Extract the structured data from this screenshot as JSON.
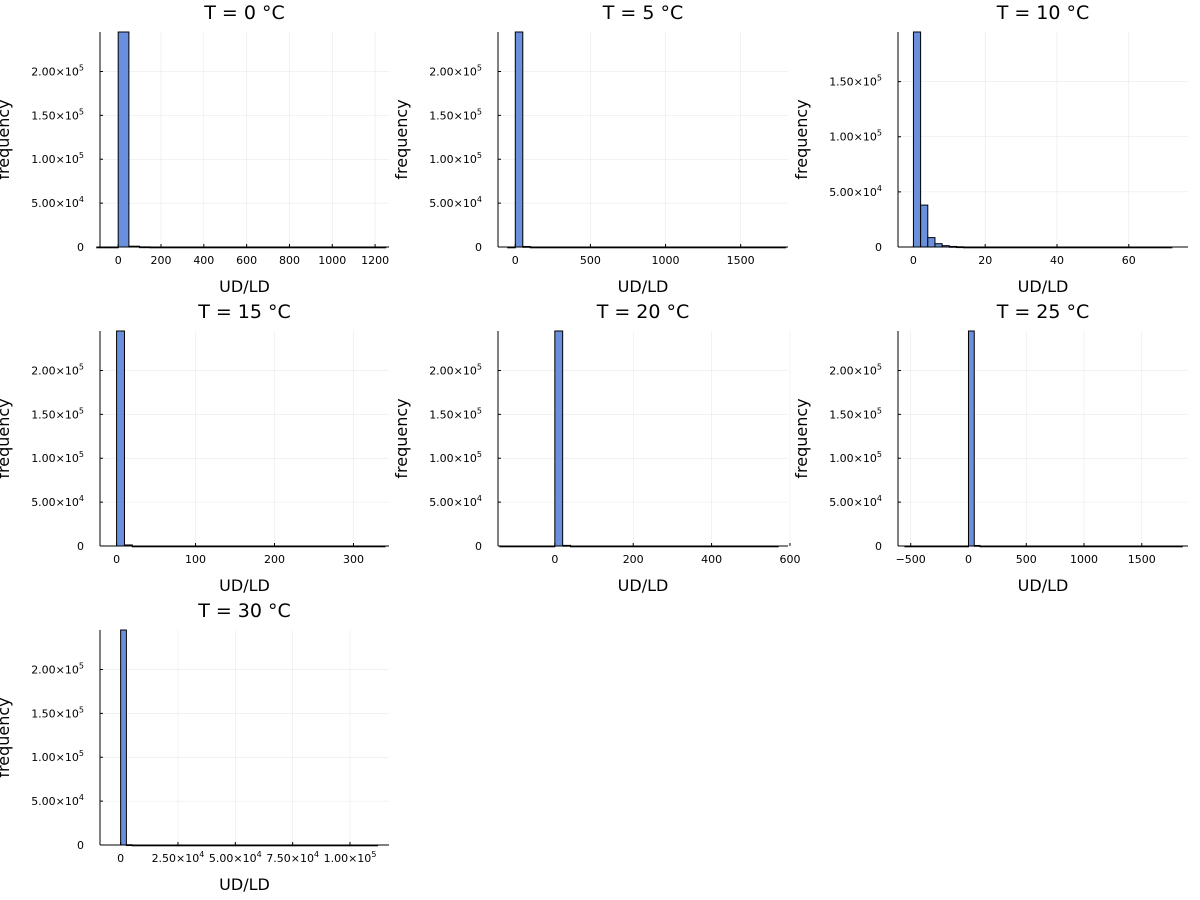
{
  "chart_data": [
    {
      "type": "bar",
      "title": "T = 0 °C",
      "xlabel": "UD/LD",
      "ylabel": "frequency",
      "grid": true,
      "legend": false,
      "bar_color": "#6a8fdc",
      "xlim": [
        -85,
        1265
      ],
      "ylim": [
        0,
        245000
      ],
      "xticks": [
        {
          "value": 0,
          "label": "0"
        },
        {
          "value": 200,
          "label": "200"
        },
        {
          "value": 400,
          "label": "400"
        },
        {
          "value": 600,
          "label": "600"
        },
        {
          "value": 800,
          "label": "800"
        },
        {
          "value": 1000,
          "label": "1000"
        },
        {
          "value": 1200,
          "label": "1200"
        }
      ],
      "yticks": [
        {
          "value": 0,
          "mant": "0",
          "exp": ""
        },
        {
          "value": 50000,
          "mant": "5.00×10",
          "exp": "4"
        },
        {
          "value": 100000,
          "mant": "1.00×10",
          "exp": "5"
        },
        {
          "value": 150000,
          "mant": "1.50×10",
          "exp": "5"
        },
        {
          "value": 200000,
          "mant": "2.00×10",
          "exp": "5"
        }
      ],
      "bins": [
        {
          "x0": -100,
          "x1": 0,
          "count": 0
        },
        {
          "x0": 0,
          "x1": 50,
          "count": 245000
        },
        {
          "x0": 50,
          "x1": 100,
          "count": 900
        },
        {
          "x0": 100,
          "x1": 150,
          "count": 150
        },
        {
          "x0": 150,
          "x1": 1250,
          "count": 0
        }
      ]
    },
    {
      "type": "bar",
      "title": "T = 5 °C",
      "xlabel": "UD/LD",
      "ylabel": "frequency",
      "grid": true,
      "legend": false,
      "bar_color": "#6a8fdc",
      "xlim": [
        -115,
        1815
      ],
      "ylim": [
        0,
        245000
      ],
      "xticks": [
        {
          "value": 0,
          "label": "0"
        },
        {
          "value": 500,
          "label": "500"
        },
        {
          "value": 1000,
          "label": "1000"
        },
        {
          "value": 1500,
          "label": "1500"
        }
      ],
      "yticks": [
        {
          "value": 0,
          "mant": "0",
          "exp": ""
        },
        {
          "value": 50000,
          "mant": "5.00×10",
          "exp": "4"
        },
        {
          "value": 100000,
          "mant": "1.00×10",
          "exp": "5"
        },
        {
          "value": 150000,
          "mant": "1.50×10",
          "exp": "5"
        },
        {
          "value": 200000,
          "mant": "2.00×10",
          "exp": "5"
        }
      ],
      "bins": [
        {
          "x0": -50,
          "x1": 0,
          "count": 0
        },
        {
          "x0": 0,
          "x1": 50,
          "count": 245000
        },
        {
          "x0": 50,
          "x1": 100,
          "count": 600
        },
        {
          "x0": 100,
          "x1": 1800,
          "count": 0
        }
      ]
    },
    {
      "type": "bar",
      "title": "T = 10 °C",
      "xlabel": "UD/LD",
      "ylabel": "frequency",
      "grid": true,
      "legend": false,
      "bar_color": "#6a8fdc",
      "xlim": [
        -4.3,
        76.5
      ],
      "ylim": [
        0,
        195000
      ],
      "xticks": [
        {
          "value": 0,
          "label": "0"
        },
        {
          "value": 20,
          "label": "20"
        },
        {
          "value": 40,
          "label": "40"
        },
        {
          "value": 60,
          "label": "60"
        }
      ],
      "yticks": [
        {
          "value": 0,
          "mant": "0",
          "exp": ""
        },
        {
          "value": 50000,
          "mant": "5.00×10",
          "exp": "4"
        },
        {
          "value": 100000,
          "mant": "1.00×10",
          "exp": "5"
        },
        {
          "value": 150000,
          "mant": "1.50×10",
          "exp": "5"
        }
      ],
      "bins": [
        {
          "x0": 0,
          "x1": 2,
          "count": 195000
        },
        {
          "x0": 2,
          "x1": 4,
          "count": 38000
        },
        {
          "x0": 4,
          "x1": 6,
          "count": 8500
        },
        {
          "x0": 6,
          "x1": 8,
          "count": 3000
        },
        {
          "x0": 8,
          "x1": 10,
          "count": 1200
        },
        {
          "x0": 10,
          "x1": 12,
          "count": 500
        },
        {
          "x0": 12,
          "x1": 14,
          "count": 200
        },
        {
          "x0": 14,
          "x1": 72,
          "count": 0
        }
      ]
    },
    {
      "type": "bar",
      "title": "T = 15 °C",
      "xlabel": "UD/LD",
      "ylabel": "frequency",
      "grid": true,
      "legend": false,
      "bar_color": "#6a8fdc",
      "xlim": [
        -21,
        345
      ],
      "ylim": [
        0,
        245000
      ],
      "xticks": [
        {
          "value": 0,
          "label": "0"
        },
        {
          "value": 100,
          "label": "100"
        },
        {
          "value": 200,
          "label": "200"
        },
        {
          "value": 300,
          "label": "300"
        }
      ],
      "yticks": [
        {
          "value": 0,
          "mant": "0",
          "exp": ""
        },
        {
          "value": 50000,
          "mant": "5.00×10",
          "exp": "4"
        },
        {
          "value": 100000,
          "mant": "1.00×10",
          "exp": "5"
        },
        {
          "value": 150000,
          "mant": "1.50×10",
          "exp": "5"
        },
        {
          "value": 200000,
          "mant": "2.00×10",
          "exp": "5"
        }
      ],
      "bins": [
        {
          "x0": 0,
          "x1": 10,
          "count": 245000
        },
        {
          "x0": 10,
          "x1": 20,
          "count": 1200
        },
        {
          "x0": 20,
          "x1": 340,
          "count": 0
        }
      ]
    },
    {
      "type": "bar",
      "title": "T = 20 °C",
      "xlabel": "UD/LD",
      "ylabel": "frequency",
      "grid": true,
      "legend": false,
      "bar_color": "#6a8fdc",
      "xlim": [
        -145,
        595
      ],
      "ylim": [
        0,
        245000
      ],
      "xticks": [
        {
          "value": 0,
          "label": "0"
        },
        {
          "value": 200,
          "label": "200"
        },
        {
          "value": 400,
          "label": "400"
        },
        {
          "value": 600,
          "label": "600"
        }
      ],
      "yticks": [
        {
          "value": 0,
          "mant": "0",
          "exp": ""
        },
        {
          "value": 50000,
          "mant": "5.00×10",
          "exp": "4"
        },
        {
          "value": 100000,
          "mant": "1.00×10",
          "exp": "5"
        },
        {
          "value": 150000,
          "mant": "1.50×10",
          "exp": "5"
        },
        {
          "value": 200000,
          "mant": "2.00×10",
          "exp": "5"
        }
      ],
      "bins": [
        {
          "x0": -140,
          "x1": 0,
          "count": 0
        },
        {
          "x0": 0,
          "x1": 20,
          "count": 245000
        },
        {
          "x0": 20,
          "x1": 40,
          "count": 700
        },
        {
          "x0": 40,
          "x1": 570,
          "count": 0
        }
      ]
    },
    {
      "type": "bar",
      "title": "T = 25 °C",
      "xlabel": "UD/LD",
      "ylabel": "frequency",
      "grid": true,
      "legend": false,
      "bar_color": "#6a8fdc",
      "xlim": [
        -610,
        1900
      ],
      "ylim": [
        0,
        245000
      ],
      "xticks": [
        {
          "value": -500,
          "label": "−500"
        },
        {
          "value": 0,
          "label": "0"
        },
        {
          "value": 500,
          "label": "500"
        },
        {
          "value": 1000,
          "label": "1000"
        },
        {
          "value": 1500,
          "label": "1500"
        }
      ],
      "yticks": [
        {
          "value": 0,
          "mant": "0",
          "exp": ""
        },
        {
          "value": 50000,
          "mant": "5.00×10",
          "exp": "4"
        },
        {
          "value": 100000,
          "mant": "1.00×10",
          "exp": "5"
        },
        {
          "value": 150000,
          "mant": "1.50×10",
          "exp": "5"
        },
        {
          "value": 200000,
          "mant": "2.00×10",
          "exp": "5"
        }
      ],
      "bins": [
        {
          "x0": -550,
          "x1": 0,
          "count": 0
        },
        {
          "x0": 0,
          "x1": 50,
          "count": 245000
        },
        {
          "x0": 50,
          "x1": 100,
          "count": 600
        },
        {
          "x0": 100,
          "x1": 1850,
          "count": 0
        }
      ]
    },
    {
      "type": "bar",
      "title": "T = 30 °C",
      "xlabel": "UD/LD",
      "ylabel": "frequency",
      "grid": true,
      "legend": false,
      "bar_color": "#6a8fdc",
      "xlim": [
        -9000,
        117000
      ],
      "ylim": [
        0,
        245000
      ],
      "xticks": [
        {
          "value": 0,
          "mant": "0",
          "exp": ""
        },
        {
          "value": 25000,
          "mant": "2.50×10",
          "exp": "4"
        },
        {
          "value": 50000,
          "mant": "5.00×10",
          "exp": "4"
        },
        {
          "value": 75000,
          "mant": "7.50×10",
          "exp": "4"
        },
        {
          "value": 100000,
          "mant": "1.00×10",
          "exp": "5"
        }
      ],
      "yticks": [
        {
          "value": 0,
          "mant": "0",
          "exp": ""
        },
        {
          "value": 50000,
          "mant": "5.00×10",
          "exp": "4"
        },
        {
          "value": 100000,
          "mant": "1.00×10",
          "exp": "5"
        },
        {
          "value": 150000,
          "mant": "1.50×10",
          "exp": "5"
        },
        {
          "value": 200000,
          "mant": "2.00×10",
          "exp": "5"
        }
      ],
      "bins": [
        {
          "x0": 0,
          "x1": 2500,
          "count": 245000
        },
        {
          "x0": 2500,
          "x1": 5000,
          "count": 300
        },
        {
          "x0": 5000,
          "x1": 112000,
          "count": 0
        }
      ]
    }
  ]
}
